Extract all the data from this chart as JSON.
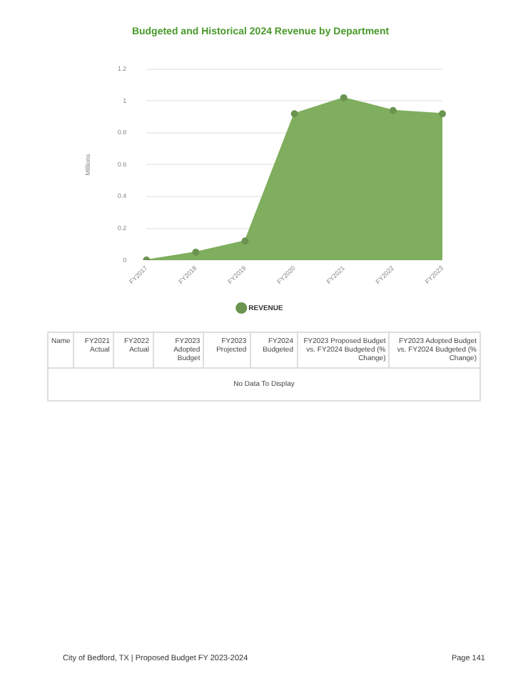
{
  "chart_data": {
    "type": "area",
    "title": "Budgeted and Historical 2024 Revenue by Department",
    "ylabel": "Millions",
    "categories": [
      "FY2017",
      "FY2018",
      "FY2019",
      "FY2020",
      "FY2021",
      "FY2022",
      "FY2023"
    ],
    "series": [
      {
        "name": "REVENUE",
        "color": "#7fae5e",
        "values": [
          0,
          0.05,
          0.12,
          0.92,
          1.02,
          0.94,
          0.92
        ]
      }
    ],
    "ylim": [
      0,
      1.2
    ],
    "yticks": [
      0,
      0.2,
      0.4,
      0.6,
      0.8,
      1,
      1.2
    ],
    "grid": "y",
    "legend": "bottom",
    "marker": "circle",
    "annotations": [
      "Name",
      "FY2021 Actual",
      "FY2022 Actual",
      "FY2023 Adopted Budget",
      "FY2023 Projected",
      "FY2024 Budgeted",
      "FY2023 Proposed Budget vs. FY2024 Budgeted (% Change)",
      "FY2023 Adopted Budget vs. FY2024 Budgeted (% Change)",
      "No Data To Display",
      "City of Bedford, TX | Proposed Budget FY 2023-2024",
      "Page 141"
    ]
  }
}
